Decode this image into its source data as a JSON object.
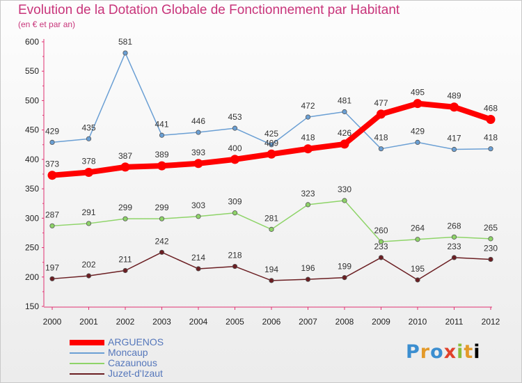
{
  "title": "Evolution de la Dotation Globale de Fonctionnement par Habitant",
  "subtitle": "(en € et par an)",
  "brand": {
    "logo_text": "Proxiti"
  },
  "chart_data": {
    "type": "line",
    "x": [
      "2000",
      "2001",
      "2002",
      "2003",
      "2004",
      "2005",
      "2006",
      "2007",
      "2008",
      "2009",
      "2010",
      "2011",
      "2012"
    ],
    "ylim": [
      150,
      600
    ],
    "yticks": [
      150,
      200,
      250,
      300,
      350,
      400,
      450,
      500,
      550,
      600
    ],
    "grid": false,
    "legend_position": "bottom-left",
    "series": [
      {
        "name": "ARGUENOS",
        "color": "#ff0000",
        "values": [
          373,
          378,
          387,
          389,
          393,
          400,
          409,
          418,
          426,
          477,
          495,
          489,
          468
        ]
      },
      {
        "name": "Moncaup",
        "color": "#6a9fd4",
        "values": [
          429,
          435,
          581,
          441,
          446,
          453,
          425,
          472,
          481,
          418,
          429,
          417,
          418
        ]
      },
      {
        "name": "Cazaunous",
        "color": "#8ed468",
        "values": [
          287,
          291,
          299,
          299,
          303,
          309,
          281,
          323,
          330,
          260,
          264,
          268,
          265
        ]
      },
      {
        "name": "Juzet-d'Izaut",
        "color": "#6b1e22",
        "values": [
          197,
          202,
          211,
          242,
          214,
          218,
          194,
          196,
          199,
          233,
          195,
          233,
          230
        ]
      }
    ]
  }
}
